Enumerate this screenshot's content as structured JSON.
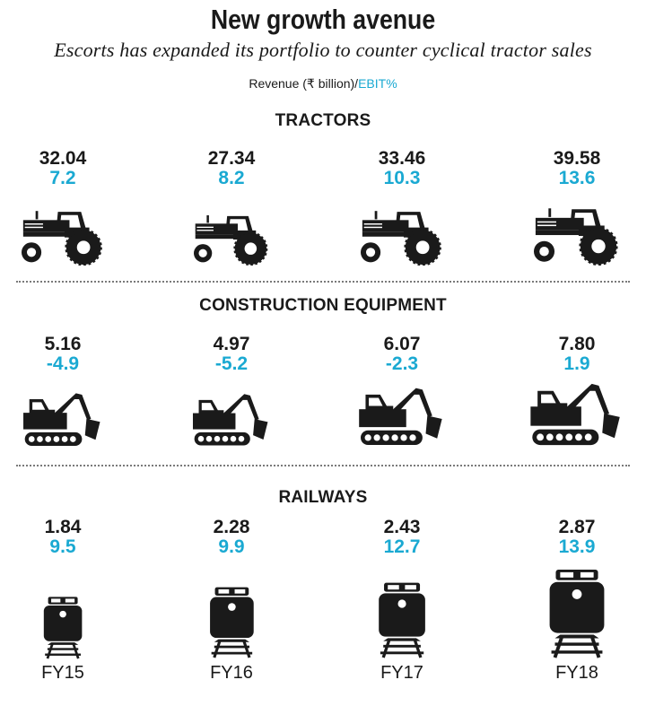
{
  "title": "New growth avenue",
  "subtitle": "Escorts has expanded its portfolio to counter cyclical tractor sales",
  "legend": {
    "revenue_label": "Revenue (₹ billion)/",
    "ebit_label": "EBIT%"
  },
  "colors": {
    "revenue": "#1a1a1a",
    "ebit": "#1aa9d2",
    "icon": "#1a1a1a"
  },
  "chart_data": {
    "type": "table",
    "title": "New growth avenue",
    "subtitle": "Escorts has expanded its portfolio to counter cyclical tractor sales",
    "categories": [
      "FY15",
      "FY16",
      "FY17",
      "FY18"
    ],
    "metrics": [
      "Revenue (₹ billion)",
      "EBIT%"
    ],
    "segments": [
      {
        "name": "TRACTORS",
        "icon": "tractor-icon",
        "revenue": [
          "32.04",
          "27.34",
          "33.46",
          "39.58"
        ],
        "ebit": [
          "7.2",
          "8.2",
          "10.3",
          "13.6"
        ],
        "icon_scale": [
          0.96,
          0.88,
          0.96,
          1.0
        ]
      },
      {
        "name": "CONSTRUCTION EQUIPMENT",
        "icon": "excavator-icon",
        "revenue": [
          "5.16",
          "4.97",
          "6.07",
          "7.80"
        ],
        "ebit": [
          "-4.9",
          "-5.2",
          "-2.3",
          "1.9"
        ],
        "icon_scale": [
          0.86,
          0.84,
          0.93,
          1.0
        ]
      },
      {
        "name": "RAILWAYS",
        "icon": "train-icon",
        "revenue": [
          "1.84",
          "2.28",
          "2.43",
          "2.87"
        ],
        "ebit": [
          "9.5",
          "9.9",
          "12.7",
          "13.9"
        ],
        "icon_scale": [
          0.7,
          0.8,
          0.85,
          1.0
        ]
      }
    ]
  }
}
